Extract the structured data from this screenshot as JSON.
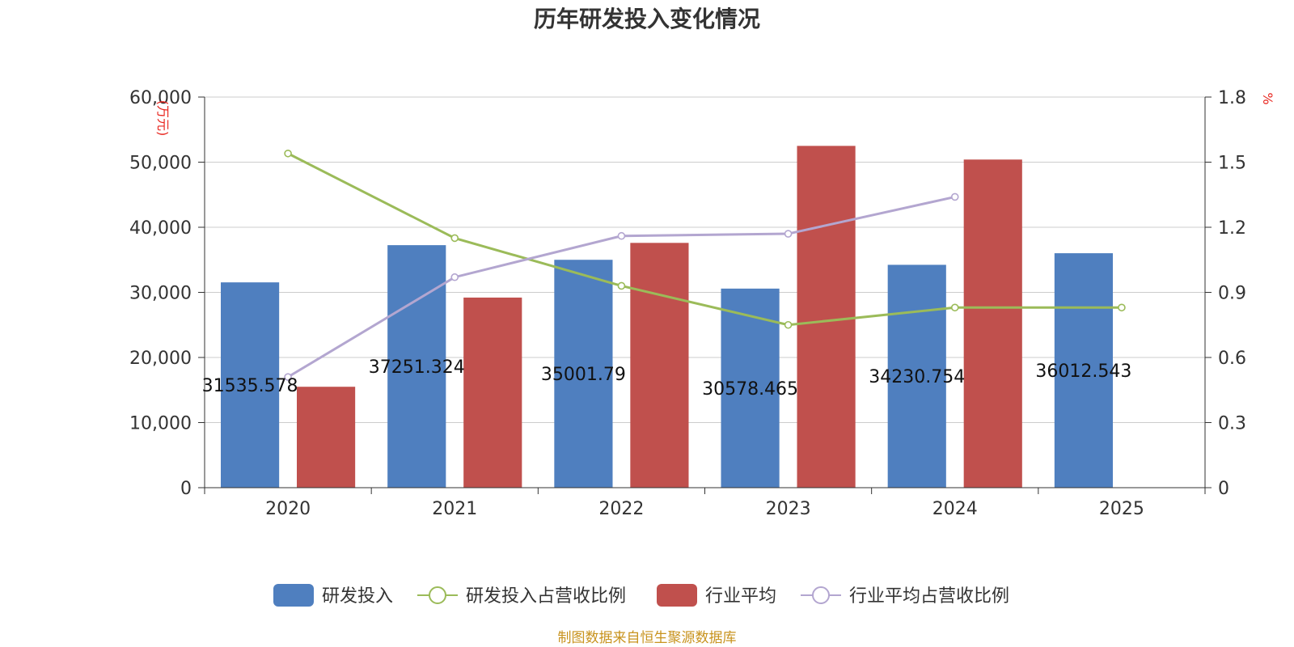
{
  "chart_data": {
    "type": "bar",
    "title": "历年研发投入变化情况",
    "categories": [
      "2020",
      "2021",
      "2022",
      "2023",
      "2024",
      "2025"
    ],
    "y_left": {
      "unit_label": "(万元)",
      "ylim": [
        0,
        60000
      ],
      "ticks": [
        "0",
        "10,000",
        "20,000",
        "30,000",
        "40,000",
        "50,000",
        "60,000"
      ]
    },
    "y_right": {
      "unit_label": "%",
      "ylim": [
        0,
        1.8
      ],
      "ticks": [
        "0",
        "0.3",
        "0.6",
        "0.9",
        "1.2",
        "1.5",
        "1.8"
      ]
    },
    "series": [
      {
        "name": "研发投入",
        "type": "bar",
        "axis": "left",
        "color": "#4f7fbf",
        "values": [
          31535.578,
          37251.324,
          35001.79,
          30578.465,
          34230.754,
          36012.543
        ],
        "labels": [
          "31535.578",
          "37251.324",
          "35001.79",
          "30578.465",
          "34230.754",
          "36012.543"
        ]
      },
      {
        "name": "研发投入占营收比例",
        "type": "line",
        "axis": "right",
        "color": "#9bbb59",
        "values": [
          1.54,
          1.15,
          0.93,
          0.75,
          0.83,
          0.83
        ]
      },
      {
        "name": "行业平均",
        "type": "bar",
        "axis": "left",
        "color": "#c0504d",
        "values": [
          15500,
          29200,
          37600,
          52500,
          50400,
          null
        ]
      },
      {
        "name": "行业平均占营收比例",
        "type": "line",
        "axis": "right",
        "color": "#b3a6d0",
        "values": [
          0.51,
          0.97,
          1.16,
          1.17,
          1.34,
          null
        ]
      }
    ],
    "grid": true,
    "legend_position": "bottom-center"
  },
  "source_note": "制图数据来自恒生聚源数据库"
}
